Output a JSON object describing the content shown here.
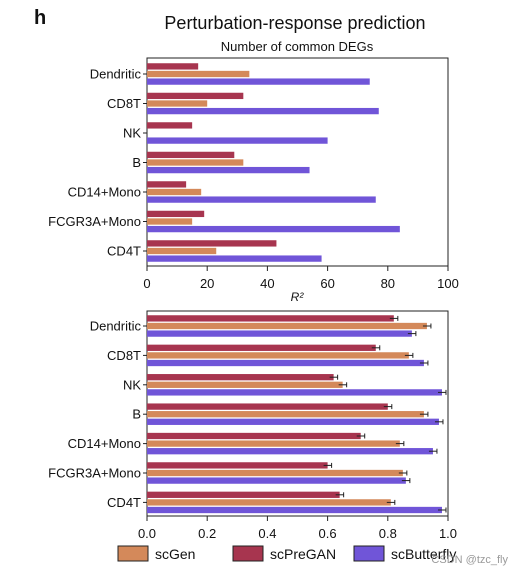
{
  "panel_label": "h",
  "title": "Perturbation-response prediction",
  "watermark": "CSDN @tzc_fly",
  "colors": {
    "scGen": "#d4895a",
    "scPreGAN": "#a7354f",
    "scButterfly": "#7055d8"
  },
  "legend": [
    "scGen",
    "scPreGAN",
    "scButterfly"
  ],
  "chart_data": [
    {
      "type": "bar",
      "orientation": "horizontal",
      "subtitle": "Number of common DEGs",
      "xlabel": "R²",
      "xlim": [
        0,
        100
      ],
      "xticks": [
        "0",
        "20",
        "40",
        "60",
        "80",
        "100"
      ],
      "categories": [
        "Dendritic",
        "CD8T",
        "NK",
        "B",
        "CD14+Mono",
        "FCGR3A+Mono",
        "CD4T"
      ],
      "series": [
        {
          "name": "scPreGAN",
          "values": [
            17,
            32,
            15,
            29,
            13,
            19,
            43
          ]
        },
        {
          "name": "scGen",
          "values": [
            34,
            20,
            0,
            32,
            18,
            15,
            23
          ]
        },
        {
          "name": "scButterfly",
          "values": [
            74,
            77,
            60,
            54,
            76,
            84,
            58
          ]
        }
      ]
    },
    {
      "type": "bar",
      "orientation": "horizontal",
      "xlim": [
        0,
        1.0
      ],
      "xticks": [
        "0.0",
        "0.2",
        "0.4",
        "0.6",
        "0.8",
        "1.0"
      ],
      "categories": [
        "Dendritic",
        "CD8T",
        "NK",
        "B",
        "CD14+Mono",
        "FCGR3A+Mono",
        "CD4T"
      ],
      "series": [
        {
          "name": "scPreGAN",
          "values": [
            0.82,
            0.76,
            0.62,
            0.8,
            0.71,
            0.6,
            0.64
          ]
        },
        {
          "name": "scGen",
          "values": [
            0.93,
            0.87,
            0.65,
            0.92,
            0.84,
            0.85,
            0.81
          ]
        },
        {
          "name": "scButterfly",
          "values": [
            0.88,
            0.92,
            0.98,
            0.97,
            0.95,
            0.86,
            0.98
          ]
        }
      ]
    }
  ]
}
